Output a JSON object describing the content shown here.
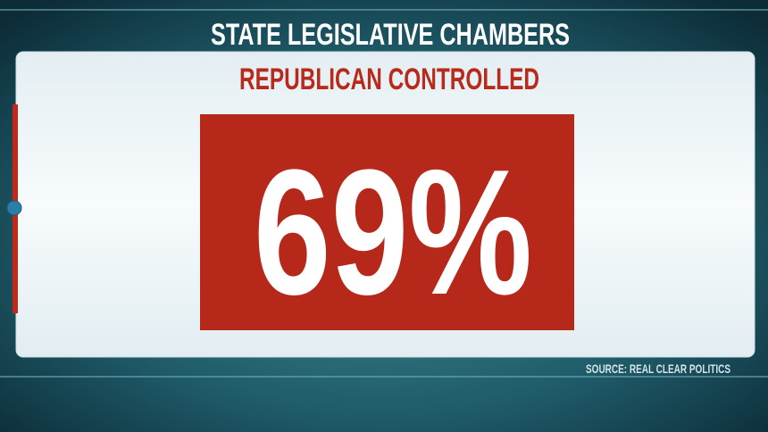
{
  "header": {
    "title": "STATE LEGISLATIVE CHAMBERS"
  },
  "panel": {
    "subtitle": "REPUBLICAN CONTROLLED",
    "stat": "69%"
  },
  "footer": {
    "source": "SOURCE: REAL CLEAR POLITICS"
  }
}
